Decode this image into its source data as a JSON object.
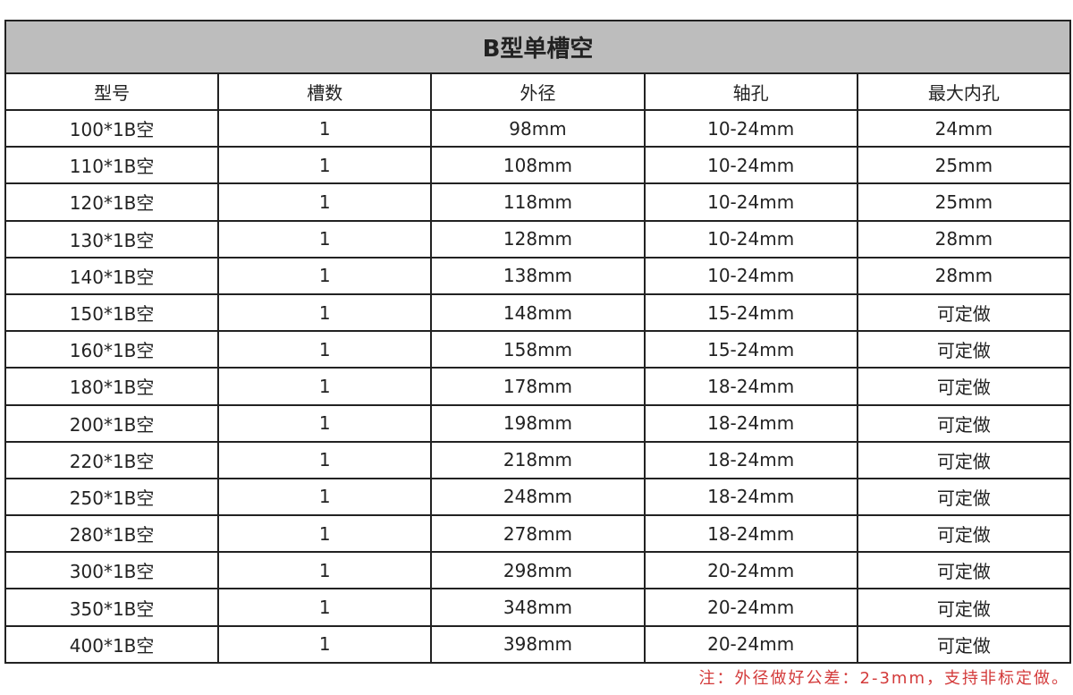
{
  "title": "B型单槽空",
  "headers": [
    "型号",
    "槽数",
    "外径",
    "轴孔",
    "最大内孔"
  ],
  "rows": [
    [
      "100*1B空",
      "1",
      "98mm",
      "10-24mm",
      "24mm"
    ],
    [
      "110*1B空",
      "1",
      "108mm",
      "10-24mm",
      "25mm"
    ],
    [
      "120*1B空",
      "1",
      "118mm",
      "10-24mm",
      "25mm"
    ],
    [
      "130*1B空",
      "1",
      "128mm",
      "10-24mm",
      "28mm"
    ],
    [
      "140*1B空",
      "1",
      "138mm",
      "10-24mm",
      "28mm"
    ],
    [
      "150*1B空",
      "1",
      "148mm",
      "15-24mm",
      "可定做"
    ],
    [
      "160*1B空",
      "1",
      "158mm",
      "15-24mm",
      "可定做"
    ],
    [
      "180*1B空",
      "1",
      "178mm",
      "18-24mm",
      "可定做"
    ],
    [
      "200*1B空",
      "1",
      "198mm",
      "18-24mm",
      "可定做"
    ],
    [
      "220*1B空",
      "1",
      "218mm",
      "18-24mm",
      "可定做"
    ],
    [
      "250*1B空",
      "1",
      "248mm",
      "18-24mm",
      "可定做"
    ],
    [
      "280*1B空",
      "1",
      "278mm",
      "18-24mm",
      "可定做"
    ],
    [
      "300*1B空",
      "1",
      "298mm",
      "20-24mm",
      "可定做"
    ],
    [
      "350*1B空",
      "1",
      "348mm",
      "20-24mm",
      "可定做"
    ],
    [
      "400*1B空",
      "1",
      "398mm",
      "20-24mm",
      "可定做"
    ]
  ],
  "note": "注：外径做好公差：2-3mm，支持非标定做。",
  "colors": {
    "title_bg": "#bdbdbd",
    "note": "#d33a3a",
    "border": "#222222"
  }
}
